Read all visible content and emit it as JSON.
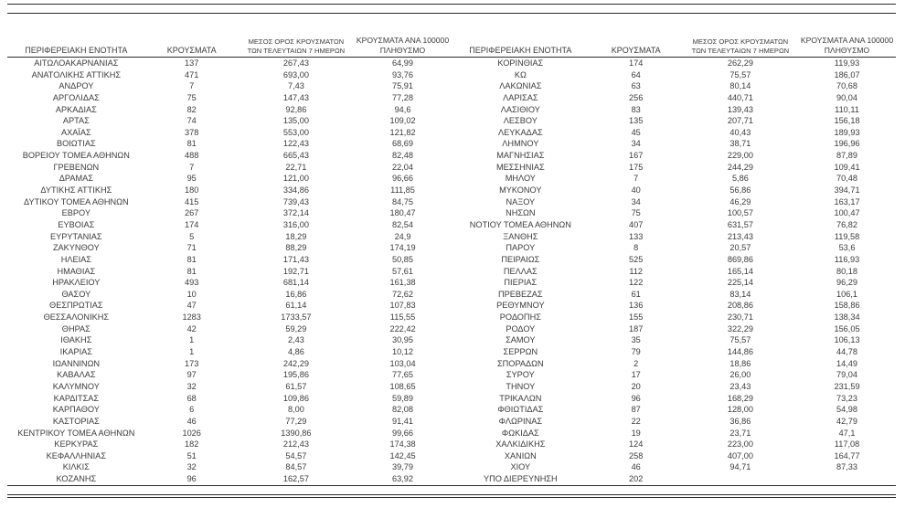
{
  "page": {
    "background": "#ffffff",
    "text_color": "#3b3b3b",
    "rule_color": "#2b2b2b"
  },
  "headers": {
    "region": "ΠΕΡΙΦΕΡΕΙΑΚΗ ΕΝΟΤΗΤΑ",
    "cases": "ΚΡΟΥΣΜΑΤΑ",
    "avg7_line1": "ΜΕΣΟΣ ΟΡΟΣ ΚΡΟΥΣΜΑΤΩΝ",
    "avg7_line2": "ΤΩΝ ΤΕΛΕΥΤΑΙΩΝ 7 ΗΜΕΡΩΝ",
    "per100k_line1": "ΚΡΟΥΣΜΑΤΑ ΑΝΑ 100000",
    "per100k_line2": "ΠΛΗΘΥΣΜΟ"
  },
  "left_table": {
    "rows": [
      {
        "region": "ΑΙΤΩΛΟΑΚΑΡΝΑΝΙΑΣ",
        "cases": "137",
        "avg7": "267,43",
        "per100k": "64,99"
      },
      {
        "region": "ΑΝΑΤΟΛΙΚΗΣ ΑΤΤΙΚΗΣ",
        "cases": "471",
        "avg7": "693,00",
        "per100k": "93,76"
      },
      {
        "region": "ΑΝΔΡΟΥ",
        "cases": "7",
        "avg7": "7,43",
        "per100k": "75,91"
      },
      {
        "region": "ΑΡΓΟΛΙΔΑΣ",
        "cases": "75",
        "avg7": "147,43",
        "per100k": "77,28"
      },
      {
        "region": "ΑΡΚΑΔΙΑΣ",
        "cases": "82",
        "avg7": "92,86",
        "per100k": "94,6"
      },
      {
        "region": "ΑΡΤΑΣ",
        "cases": "74",
        "avg7": "135,00",
        "per100k": "109,02"
      },
      {
        "region": "ΑΧΑΪΑΣ",
        "cases": "378",
        "avg7": "553,00",
        "per100k": "121,82"
      },
      {
        "region": "ΒΟΙΩΤΙΑΣ",
        "cases": "81",
        "avg7": "122,43",
        "per100k": "68,69"
      },
      {
        "region": "ΒΟΡΕΙΟΥ ΤΟΜΕΑ ΑΘΗΝΩΝ",
        "cases": "488",
        "avg7": "665,43",
        "per100k": "82,48"
      },
      {
        "region": "ΓΡΕΒΕΝΩΝ",
        "cases": "7",
        "avg7": "22,71",
        "per100k": "22,04"
      },
      {
        "region": "ΔΡΑΜΑΣ",
        "cases": "95",
        "avg7": "121,00",
        "per100k": "96,66"
      },
      {
        "region": "ΔΥΤΙΚΗΣ ΑΤΤΙΚΗΣ",
        "cases": "180",
        "avg7": "334,86",
        "per100k": "111,85"
      },
      {
        "region": "ΔΥΤΙΚΟΥ ΤΟΜΕΑ ΑΘΗΝΩΝ",
        "cases": "415",
        "avg7": "739,43",
        "per100k": "84,75"
      },
      {
        "region": "ΕΒΡΟΥ",
        "cases": "267",
        "avg7": "372,14",
        "per100k": "180,47"
      },
      {
        "region": "ΕΥΒΟΙΑΣ",
        "cases": "174",
        "avg7": "316,00",
        "per100k": "82,54"
      },
      {
        "region": "ΕΥΡΥΤΑΝΙΑΣ",
        "cases": "5",
        "avg7": "18,29",
        "per100k": "24,9"
      },
      {
        "region": "ΖΑΚΥΝΘΟΥ",
        "cases": "71",
        "avg7": "88,29",
        "per100k": "174,19"
      },
      {
        "region": "ΗΛΕΙΑΣ",
        "cases": "81",
        "avg7": "171,43",
        "per100k": "50,85"
      },
      {
        "region": "ΗΜΑΘΙΑΣ",
        "cases": "81",
        "avg7": "192,71",
        "per100k": "57,61"
      },
      {
        "region": "ΗΡΑΚΛΕΙΟΥ",
        "cases": "493",
        "avg7": "681,14",
        "per100k": "161,38"
      },
      {
        "region": "ΘΑΣΟΥ",
        "cases": "10",
        "avg7": "16,86",
        "per100k": "72,62"
      },
      {
        "region": "ΘΕΣΠΡΩΤΙΑΣ",
        "cases": "47",
        "avg7": "61,14",
        "per100k": "107,83"
      },
      {
        "region": "ΘΕΣΣΑΛΟΝΙΚΗΣ",
        "cases": "1283",
        "avg7": "1733,57",
        "per100k": "115,55"
      },
      {
        "region": "ΘΗΡΑΣ",
        "cases": "42",
        "avg7": "59,29",
        "per100k": "222,42"
      },
      {
        "region": "ΙΘΑΚΗΣ",
        "cases": "1",
        "avg7": "2,43",
        "per100k": "30,95"
      },
      {
        "region": "ΙΚΑΡΙΑΣ",
        "cases": "1",
        "avg7": "4,86",
        "per100k": "10,12"
      },
      {
        "region": "ΙΩΑΝΝΙΝΩΝ",
        "cases": "173",
        "avg7": "242,29",
        "per100k": "103,04"
      },
      {
        "region": "ΚΑΒΑΛΑΣ",
        "cases": "97",
        "avg7": "195,86",
        "per100k": "77,65"
      },
      {
        "region": "ΚΑΛΥΜΝΟΥ",
        "cases": "32",
        "avg7": "61,57",
        "per100k": "108,65"
      },
      {
        "region": "ΚΑΡΔΙΤΣΑΣ",
        "cases": "68",
        "avg7": "109,86",
        "per100k": "59,89"
      },
      {
        "region": "ΚΑΡΠΑΘΟΥ",
        "cases": "6",
        "avg7": "8,00",
        "per100k": "82,08"
      },
      {
        "region": "ΚΑΣΤΟΡΙΑΣ",
        "cases": "46",
        "avg7": "77,29",
        "per100k": "91,41"
      },
      {
        "region": "ΚΕΝΤΡΙΚΟΥ ΤΟΜΕΑ ΑΘΗΝΩΝ",
        "cases": "1026",
        "avg7": "1390,86",
        "per100k": "99,66"
      },
      {
        "region": "ΚΕΡΚΥΡΑΣ",
        "cases": "182",
        "avg7": "212,43",
        "per100k": "174,38"
      },
      {
        "region": "ΚΕΦΑΛΛΗΝΙΑΣ",
        "cases": "51",
        "avg7": "54,57",
        "per100k": "142,45"
      },
      {
        "region": "ΚΙΛΚΙΣ",
        "cases": "32",
        "avg7": "84,57",
        "per100k": "39,79"
      },
      {
        "region": "ΚΟΖΑΝΗΣ",
        "cases": "96",
        "avg7": "162,57",
        "per100k": "63,92"
      }
    ]
  },
  "right_table": {
    "rows": [
      {
        "region": "ΚΟΡΙΝΘΙΑΣ",
        "cases": "174",
        "avg7": "262,29",
        "per100k": "119,93"
      },
      {
        "region": "ΚΩ",
        "cases": "64",
        "avg7": "75,57",
        "per100k": "186,07"
      },
      {
        "region": "ΛΑΚΩΝΙΑΣ",
        "cases": "63",
        "avg7": "80,14",
        "per100k": "70,68"
      },
      {
        "region": "ΛΑΡΙΣΑΣ",
        "cases": "256",
        "avg7": "440,71",
        "per100k": "90,04"
      },
      {
        "region": "ΛΑΣΙΘΙΟΥ",
        "cases": "83",
        "avg7": "139,43",
        "per100k": "110,11"
      },
      {
        "region": "ΛΕΣΒΟΥ",
        "cases": "135",
        "avg7": "207,71",
        "per100k": "156,18"
      },
      {
        "region": "ΛΕΥΚΑΔΑΣ",
        "cases": "45",
        "avg7": "40,43",
        "per100k": "189,93"
      },
      {
        "region": "ΛΗΜΝΟΥ",
        "cases": "34",
        "avg7": "38,71",
        "per100k": "196,96"
      },
      {
        "region": "ΜΑΓΝΗΣΙΑΣ",
        "cases": "167",
        "avg7": "229,00",
        "per100k": "87,89"
      },
      {
        "region": "ΜΕΣΣΗΝΙΑΣ",
        "cases": "175",
        "avg7": "244,29",
        "per100k": "109,41"
      },
      {
        "region": "ΜΗΛΟΥ",
        "cases": "7",
        "avg7": "5,86",
        "per100k": "70,48"
      },
      {
        "region": "ΜΥΚΟΝΟΥ",
        "cases": "40",
        "avg7": "56,86",
        "per100k": "394,71"
      },
      {
        "region": "ΝΑΞΟΥ",
        "cases": "34",
        "avg7": "46,29",
        "per100k": "163,17"
      },
      {
        "region": "ΝΗΣΩΝ",
        "cases": "75",
        "avg7": "100,57",
        "per100k": "100,47"
      },
      {
        "region": "ΝΟΤΙΟΥ ΤΟΜΕΑ ΑΘΗΝΩΝ",
        "cases": "407",
        "avg7": "631,57",
        "per100k": "76,82"
      },
      {
        "region": "ΞΑΝΘΗΣ",
        "cases": "133",
        "avg7": "213,43",
        "per100k": "119,58"
      },
      {
        "region": "ΠΑΡΟΥ",
        "cases": "8",
        "avg7": "20,57",
        "per100k": "53,6"
      },
      {
        "region": "ΠΕΙΡΑΙΩΣ",
        "cases": "525",
        "avg7": "869,86",
        "per100k": "116,93"
      },
      {
        "region": "ΠΕΛΛΑΣ",
        "cases": "112",
        "avg7": "165,14",
        "per100k": "80,18"
      },
      {
        "region": "ΠΙΕΡΙΑΣ",
        "cases": "122",
        "avg7": "225,14",
        "per100k": "96,29"
      },
      {
        "region": "ΠΡΕΒΕΖΑΣ",
        "cases": "61",
        "avg7": "83,14",
        "per100k": "106,1"
      },
      {
        "region": "ΡΕΘΥΜΝΟΥ",
        "cases": "136",
        "avg7": "208,86",
        "per100k": "158,86"
      },
      {
        "region": "ΡΟΔΟΠΗΣ",
        "cases": "155",
        "avg7": "230,71",
        "per100k": "138,34"
      },
      {
        "region": "ΡΟΔΟΥ",
        "cases": "187",
        "avg7": "322,29",
        "per100k": "156,05"
      },
      {
        "region": "ΣΑΜΟΥ",
        "cases": "35",
        "avg7": "75,57",
        "per100k": "106,13"
      },
      {
        "region": "ΣΕΡΡΩΝ",
        "cases": "79",
        "avg7": "144,86",
        "per100k": "44,78"
      },
      {
        "region": "ΣΠΟΡΑΔΩΝ",
        "cases": "2",
        "avg7": "18,86",
        "per100k": "14,49"
      },
      {
        "region": "ΣΥΡΟΥ",
        "cases": "17",
        "avg7": "26,00",
        "per100k": "79,04"
      },
      {
        "region": "ΤΗΝΟΥ",
        "cases": "20",
        "avg7": "23,43",
        "per100k": "231,59"
      },
      {
        "region": "ΤΡΙΚΑΛΩΝ",
        "cases": "96",
        "avg7": "168,29",
        "per100k": "73,23"
      },
      {
        "region": "ΦΘΙΩΤΙΔΑΣ",
        "cases": "87",
        "avg7": "128,00",
        "per100k": "54,98"
      },
      {
        "region": "ΦΛΩΡΙΝΑΣ",
        "cases": "22",
        "avg7": "36,86",
        "per100k": "42,79"
      },
      {
        "region": "ΦΩΚΙΔΑΣ",
        "cases": "19",
        "avg7": "23,71",
        "per100k": "47,1"
      },
      {
        "region": "ΧΑΛΚΙΔΙΚΗΣ",
        "cases": "124",
        "avg7": "223,00",
        "per100k": "117,08"
      },
      {
        "region": "ΧΑΝΙΩΝ",
        "cases": "258",
        "avg7": "407,00",
        "per100k": "164,77"
      },
      {
        "region": "ΧΙΟΥ",
        "cases": "46",
        "avg7": "94,71",
        "per100k": "87,33"
      },
      {
        "region": "ΥΠΟ ΔΙΕΡΕΥΝΗΣΗ",
        "cases": "202",
        "avg7": "",
        "per100k": ""
      }
    ]
  }
}
